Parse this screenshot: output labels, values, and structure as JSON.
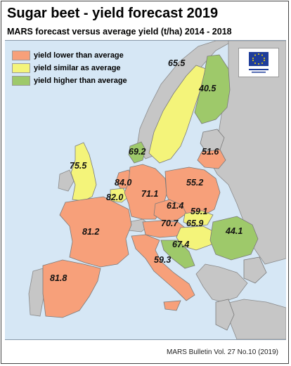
{
  "header": {
    "title": "Sugar beet - yield forecast 2019",
    "subtitle": "MARS forecast versus average yield (t/ha) 2014 - 2018"
  },
  "legend": {
    "items": [
      {
        "label": "yield lower than average",
        "color": "#f7a07a"
      },
      {
        "label": "yield similar as average",
        "color": "#f4f47a"
      },
      {
        "label": "yield higher than average",
        "color": "#9ec96a"
      }
    ]
  },
  "colors": {
    "sea": "#d6e7f5",
    "non_eu": "#c6c6c6",
    "border": "#7a7a7a"
  },
  "regions": {
    "sweden": {
      "value": "65.5",
      "class": "similar"
    },
    "finland": {
      "value": "40.5",
      "class": "higher"
    },
    "denmark": {
      "value": "69.2",
      "class": "higher"
    },
    "lithuania": {
      "value": "51.6",
      "class": "lower"
    },
    "uk": {
      "value": "75.5",
      "class": "similar"
    },
    "netherlands": {
      "value": "84.0",
      "class": "lower"
    },
    "belgium": {
      "value": "82.0",
      "class": "similar"
    },
    "germany": {
      "value": "71.1",
      "class": "lower"
    },
    "poland": {
      "value": "55.2",
      "class": "lower"
    },
    "czechia": {
      "value": "61.4",
      "class": "lower"
    },
    "slovakia": {
      "value": "59.1",
      "class": "similar"
    },
    "austria": {
      "value": "70.7",
      "class": "lower"
    },
    "hungary": {
      "value": "65.9",
      "class": "similar"
    },
    "romania": {
      "value": "44.1",
      "class": "higher"
    },
    "croatia": {
      "value": "67.4",
      "class": "higher"
    },
    "france": {
      "value": "81.2",
      "class": "lower"
    },
    "italy": {
      "value": "59.3",
      "class": "lower"
    },
    "spain": {
      "value": "81.8",
      "class": "lower"
    }
  },
  "footer": {
    "source": "MARS Bulletin Vol. 27 No.10 (2019)"
  }
}
